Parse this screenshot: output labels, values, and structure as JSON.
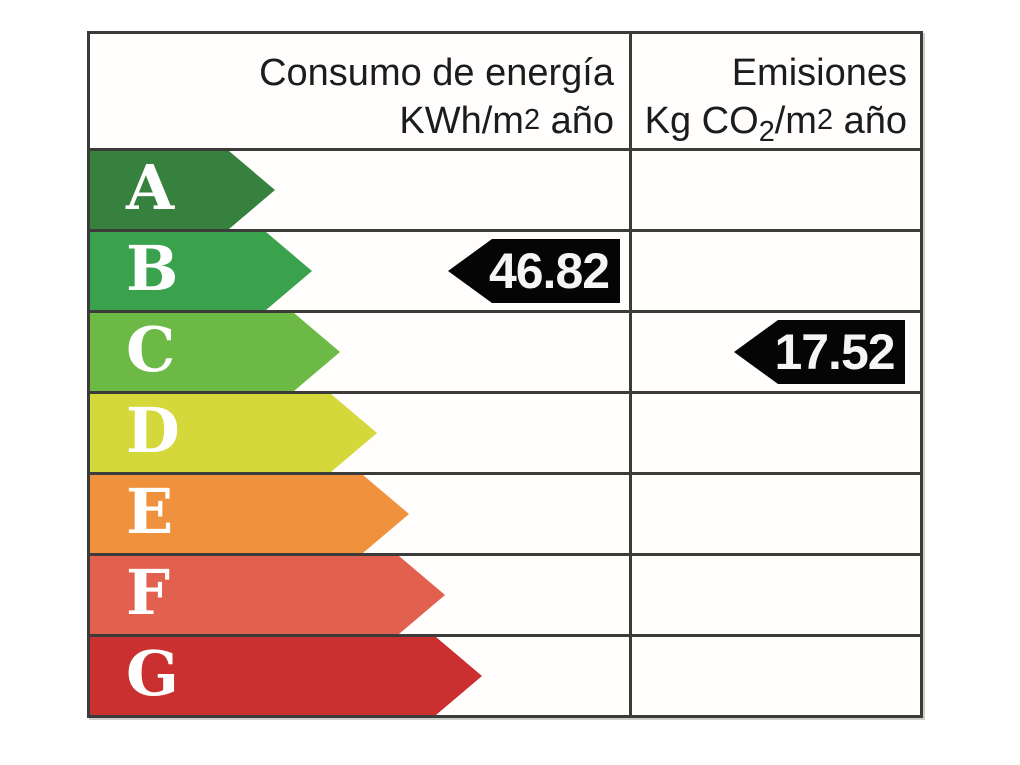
{
  "header": {
    "consumption_line1": "Consumo de energía",
    "consumption_line2_prefix": "KWh/m",
    "consumption_line2_sup": "2",
    "consumption_line2_suffix": " año",
    "emissions_line1": "Emisiones",
    "emissions_line2_prefix": "Kg CO",
    "emissions_line2_sub": "2",
    "emissions_line2_mid": "/m",
    "emissions_line2_sup": "2",
    "emissions_line2_suffix": " año"
  },
  "ratings": [
    {
      "letter": "A",
      "color_hex": "#37813f"
    },
    {
      "letter": "B",
      "color_hex": "#3aa14c"
    },
    {
      "letter": "C",
      "color_hex": "#6cba45"
    },
    {
      "letter": "D",
      "color_hex": "#d5d83b"
    },
    {
      "letter": "E",
      "color_hex": "#f0913d"
    },
    {
      "letter": "F",
      "color_hex": "#e2614e"
    },
    {
      "letter": "G",
      "color_hex": "#c9302f"
    }
  ],
  "values": {
    "consumption_value": "46.82",
    "emissions_value": "17.52",
    "marker_color": "#050505",
    "marker_text_color": "#ffffff"
  },
  "chart_data": {
    "type": "bar",
    "categories": [
      "A",
      "B",
      "C",
      "D",
      "E",
      "F",
      "G"
    ],
    "category_colors": [
      "#37813f",
      "#3aa14c",
      "#6cba45",
      "#d5d83b",
      "#f0913d",
      "#e2614e",
      "#c9302f"
    ],
    "columns": [
      "Consumo de energía KWh/m2 año",
      "Emisiones Kg CO2/m2 año"
    ],
    "series": [
      {
        "name": "Consumo de energía KWh/m2 año",
        "rating": "B",
        "value": 46.82
      },
      {
        "name": "Emisiones Kg CO2/m2 año",
        "rating": "C",
        "value": 17.52
      }
    ],
    "legend_position": "none",
    "grid": true
  }
}
